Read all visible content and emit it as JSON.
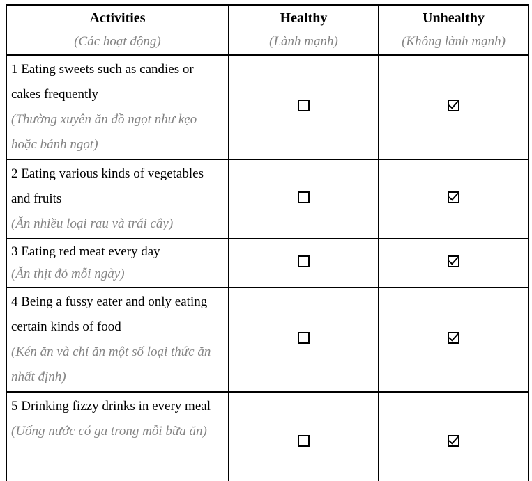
{
  "colors": {
    "border": "#000000",
    "primary_text": "#000000",
    "secondary_text": "#848484",
    "background": "#ffffff"
  },
  "table": {
    "headers": {
      "activities": {
        "en": "Activities",
        "vi": "(Các hoạt động)"
      },
      "healthy": {
        "en": "Healthy",
        "vi": "(Lành mạnh)"
      },
      "unhealthy": {
        "en": "Unhealthy",
        "vi": "(Không lành mạnh)"
      }
    },
    "rows": [
      {
        "activity_en": "1 Eating sweets such as candies or cakes frequently",
        "activity_vi": "(Thường xuyên ăn đồ ngọt như kẹo hoặc bánh ngọt)",
        "healthy_checked": false,
        "unhealthy_checked": true
      },
      {
        "activity_en": "2 Eating various kinds of vegetables and fruits",
        "activity_vi": "(Ăn nhiều loại rau và trái cây)",
        "healthy_checked": false,
        "unhealthy_checked": true
      },
      {
        "activity_en": "3 Eating red meat every day",
        "activity_vi": "(Ăn thịt đỏ mỗi ngày)",
        "healthy_checked": false,
        "unhealthy_checked": true
      },
      {
        "activity_en": "4 Being a fussy eater and only eating certain kinds of food",
        "activity_vi": "(Kén ăn và chỉ ăn một số loại thức ăn nhất định)",
        "healthy_checked": false,
        "unhealthy_checked": true
      },
      {
        "activity_en": "5 Drinking fizzy drinks in every meal",
        "activity_vi": "(Uống nước có ga trong mỗi bữa ăn)",
        "healthy_checked": false,
        "unhealthy_checked": true
      }
    ]
  }
}
